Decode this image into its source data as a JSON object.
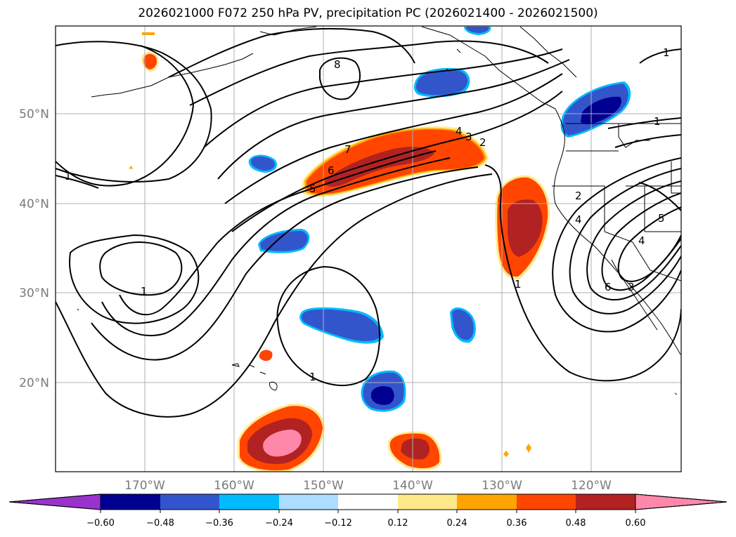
{
  "title": "2026021000 F072 250 hPa PV, precipitation PC (2026021400 - 2026021500)",
  "map": {
    "lon_range": [
      -180,
      -110
    ],
    "lat_range": [
      10,
      60
    ],
    "gridlines": true,
    "lat_ticks": [
      {
        "value": 50,
        "label": "50°N"
      },
      {
        "value": 40,
        "label": "40°N"
      },
      {
        "value": 30,
        "label": "30°N"
      },
      {
        "value": 20,
        "label": "20°N"
      }
    ],
    "lon_ticks": [
      {
        "value": -170,
        "label": "170°W"
      },
      {
        "value": -160,
        "label": "160°W"
      },
      {
        "value": -150,
        "label": "150°W"
      },
      {
        "value": -140,
        "label": "140°W"
      },
      {
        "value": -130,
        "label": "130°W"
      },
      {
        "value": -120,
        "label": "120°W"
      }
    ],
    "contour_labels": [
      "1",
      "1",
      "1",
      "1",
      "1",
      "1",
      "2",
      "2",
      "3",
      "4",
      "4",
      "4",
      "5",
      "5",
      "6",
      "6",
      "7",
      "8",
      "3"
    ]
  },
  "colorbar": {
    "ticks": [
      "−0.60",
      "−0.48",
      "−0.36",
      "−0.24",
      "−0.12",
      "0.12",
      "0.24",
      "0.36",
      "0.48",
      "0.60"
    ],
    "colors": {
      "lt_-0.60": "#9933cc",
      "-0.60_-0.48": "#000090",
      "-0.48_-0.36": "#3355cc",
      "-0.36_-0.24": "#00bbff",
      "-0.24_-0.12": "#aaddff",
      "-0.12_0.12": "#ffffff",
      "0.12_0.24": "#ffe98a",
      "0.24_0.36": "#ffa500",
      "0.36_0.48": "#ff4500",
      "0.48_0.60": "#b22222",
      "gt_0.60": "#ff88aa"
    }
  }
}
